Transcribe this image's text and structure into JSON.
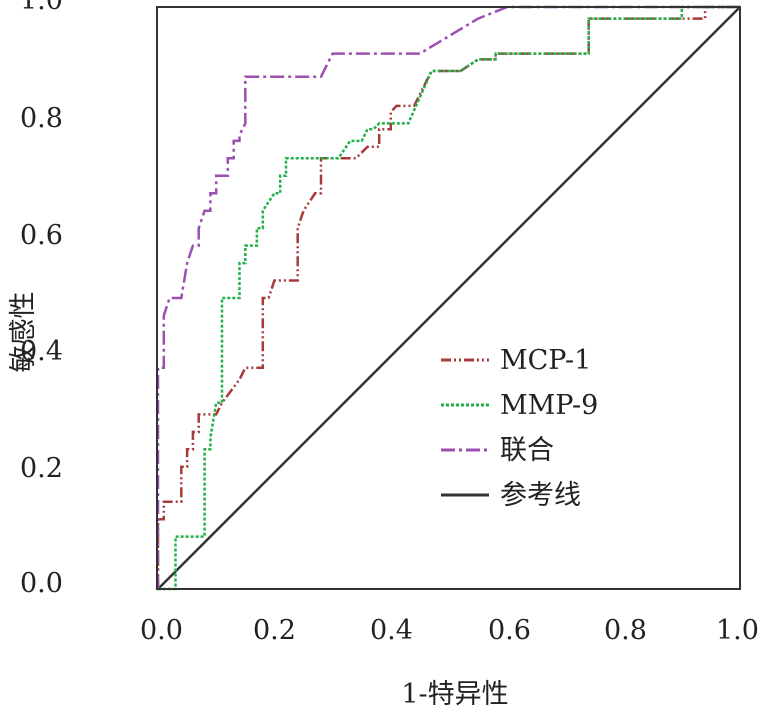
{
  "chart_data": {
    "type": "line",
    "title": "",
    "xlabel": "1-特异性",
    "ylabel": "敏感性",
    "xlim": [
      0.0,
      1.0
    ],
    "ylim": [
      0.0,
      1.0
    ],
    "x_ticks": [
      "0.0",
      "0.2",
      "0.4",
      "0.6",
      "0.8",
      "1.0"
    ],
    "y_ticks": [
      "0.0",
      "0.2",
      "0.4",
      "0.6",
      "0.8",
      "1.0"
    ],
    "grid": false,
    "legend_position": "center-right",
    "series": [
      {
        "name": "MCP-1",
        "color": "#a83a3a",
        "style": "dash-dot-dot",
        "points": [
          [
            0.0,
            0.0
          ],
          [
            0.0,
            0.12
          ],
          [
            0.01,
            0.12
          ],
          [
            0.01,
            0.15
          ],
          [
            0.04,
            0.15
          ],
          [
            0.04,
            0.21
          ],
          [
            0.05,
            0.21
          ],
          [
            0.05,
            0.24
          ],
          [
            0.06,
            0.24
          ],
          [
            0.06,
            0.27
          ],
          [
            0.07,
            0.27
          ],
          [
            0.07,
            0.3
          ],
          [
            0.1,
            0.3
          ],
          [
            0.11,
            0.32
          ],
          [
            0.14,
            0.36
          ],
          [
            0.15,
            0.38
          ],
          [
            0.18,
            0.38
          ],
          [
            0.18,
            0.5
          ],
          [
            0.19,
            0.5
          ],
          [
            0.2,
            0.53
          ],
          [
            0.24,
            0.53
          ],
          [
            0.24,
            0.62
          ],
          [
            0.25,
            0.65
          ],
          [
            0.27,
            0.68
          ],
          [
            0.28,
            0.68
          ],
          [
            0.28,
            0.74
          ],
          [
            0.34,
            0.74
          ],
          [
            0.36,
            0.76
          ],
          [
            0.38,
            0.76
          ],
          [
            0.38,
            0.79
          ],
          [
            0.4,
            0.79
          ],
          [
            0.4,
            0.82
          ],
          [
            0.41,
            0.83
          ],
          [
            0.44,
            0.83
          ],
          [
            0.47,
            0.89
          ],
          [
            0.52,
            0.89
          ],
          [
            0.55,
            0.91
          ],
          [
            0.58,
            0.91
          ],
          [
            0.58,
            0.92
          ],
          [
            0.74,
            0.92
          ],
          [
            0.74,
            0.98
          ],
          [
            0.94,
            0.98
          ],
          [
            0.94,
            1.0
          ],
          [
            1.0,
            1.0
          ]
        ]
      },
      {
        "name": "MMP-9",
        "color": "#22b04a",
        "style": "dotted",
        "points": [
          [
            0.0,
            0.0
          ],
          [
            0.03,
            0.0
          ],
          [
            0.03,
            0.09
          ],
          [
            0.08,
            0.09
          ],
          [
            0.08,
            0.24
          ],
          [
            0.09,
            0.24
          ],
          [
            0.09,
            0.26
          ],
          [
            0.1,
            0.32
          ],
          [
            0.11,
            0.32
          ],
          [
            0.11,
            0.5
          ],
          [
            0.14,
            0.5
          ],
          [
            0.14,
            0.56
          ],
          [
            0.15,
            0.56
          ],
          [
            0.15,
            0.59
          ],
          [
            0.17,
            0.59
          ],
          [
            0.17,
            0.62
          ],
          [
            0.18,
            0.62
          ],
          [
            0.18,
            0.65
          ],
          [
            0.2,
            0.68
          ],
          [
            0.21,
            0.68
          ],
          [
            0.21,
            0.71
          ],
          [
            0.22,
            0.71
          ],
          [
            0.22,
            0.74
          ],
          [
            0.31,
            0.74
          ],
          [
            0.33,
            0.77
          ],
          [
            0.35,
            0.77
          ],
          [
            0.36,
            0.79
          ],
          [
            0.37,
            0.79
          ],
          [
            0.38,
            0.8
          ],
          [
            0.43,
            0.8
          ],
          [
            0.47,
            0.89
          ],
          [
            0.52,
            0.89
          ],
          [
            0.55,
            0.91
          ],
          [
            0.58,
            0.91
          ],
          [
            0.58,
            0.92
          ],
          [
            0.74,
            0.92
          ],
          [
            0.74,
            0.98
          ],
          [
            0.9,
            0.98
          ],
          [
            0.9,
            1.0
          ],
          [
            1.0,
            1.0
          ]
        ]
      },
      {
        "name": "联合",
        "color": "#9b4fb0",
        "style": "dash-dot",
        "points": [
          [
            0.0,
            0.0
          ],
          [
            0.0,
            0.38
          ],
          [
            0.01,
            0.38
          ],
          [
            0.01,
            0.47
          ],
          [
            0.02,
            0.5
          ],
          [
            0.04,
            0.5
          ],
          [
            0.05,
            0.56
          ],
          [
            0.06,
            0.59
          ],
          [
            0.07,
            0.59
          ],
          [
            0.07,
            0.62
          ],
          [
            0.08,
            0.65
          ],
          [
            0.09,
            0.65
          ],
          [
            0.09,
            0.68
          ],
          [
            0.1,
            0.68
          ],
          [
            0.1,
            0.71
          ],
          [
            0.12,
            0.71
          ],
          [
            0.12,
            0.74
          ],
          [
            0.13,
            0.74
          ],
          [
            0.13,
            0.77
          ],
          [
            0.14,
            0.77
          ],
          [
            0.14,
            0.78
          ],
          [
            0.15,
            0.8
          ],
          [
            0.15,
            0.88
          ],
          [
            0.28,
            0.88
          ],
          [
            0.3,
            0.92
          ],
          [
            0.45,
            0.92
          ],
          [
            0.5,
            0.95
          ],
          [
            0.55,
            0.98
          ],
          [
            0.6,
            1.0
          ],
          [
            1.0,
            1.0
          ]
        ]
      },
      {
        "name": "参考线",
        "color": "#333333",
        "style": "solid",
        "points": [
          [
            0.0,
            0.0
          ],
          [
            1.0,
            1.0
          ]
        ]
      }
    ]
  }
}
